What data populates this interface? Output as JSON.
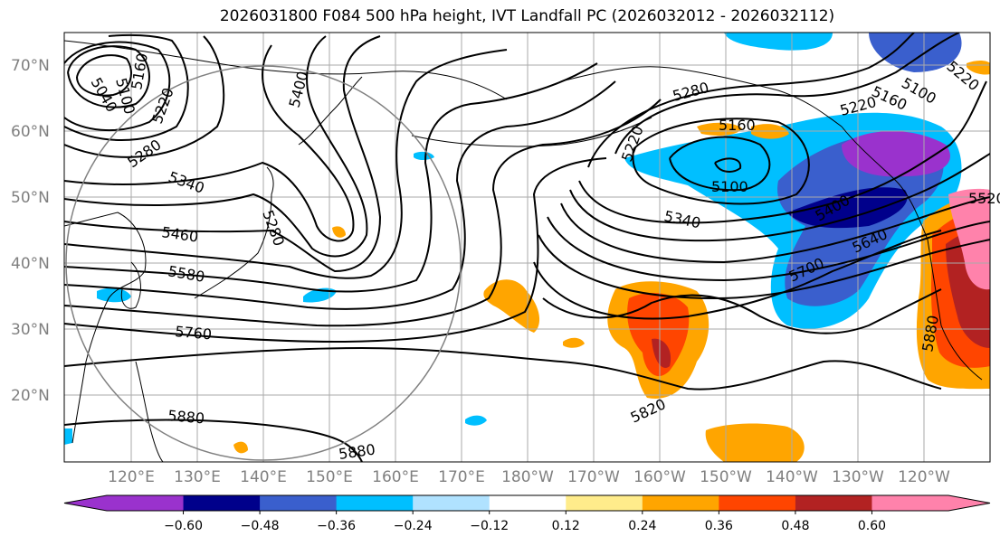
{
  "title": "2026031800 F084 500 hPa height, IVT Landfall PC (2026032012 - 2026032112)",
  "lat_labels": [
    "70°N",
    "60°N",
    "50°N",
    "40°N",
    "30°N",
    "20°N"
  ],
  "lon_labels": [
    "120°E",
    "130°E",
    "140°E",
    "150°E",
    "160°E",
    "170°E",
    "180°W",
    "170°W",
    "160°W",
    "150°W",
    "140°W",
    "130°W",
    "120°W"
  ],
  "colorbar": {
    "colors": [
      "#9a32cd",
      "#00008b",
      "#3a5fcd",
      "#00bfff",
      "#b0e2ff",
      "#ffffff",
      "#ffec8b",
      "#ffa500",
      "#ff4500",
      "#b22222",
      "#ff82ab"
    ],
    "tick_labels": [
      "−0.60",
      "−0.48",
      "−0.36",
      "−0.24",
      "−0.12",
      "0.12",
      "0.24",
      "0.36",
      "0.48",
      "0.60"
    ]
  },
  "contour_labels": [
    "5040",
    "5100",
    "5160",
    "5220",
    "5280",
    "5340",
    "5400",
    "5460",
    "5580",
    "5760",
    "5880",
    "5880",
    "5280",
    "5160",
    "5220",
    "5100",
    "5340",
    "5640",
    "5700",
    "5820",
    "5880",
    "5160",
    "5100",
    "5220",
    "5400",
    "5220",
    "5520",
    "5280"
  ]
}
